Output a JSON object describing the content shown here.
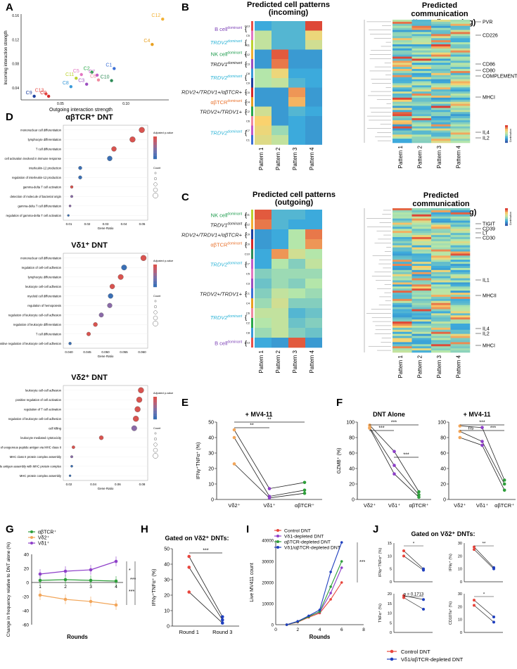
{
  "panels": {
    "A": "A",
    "B": "B",
    "C": "C",
    "D": "D",
    "E": "E",
    "F": "F",
    "G": "G",
    "H": "H",
    "I": "I",
    "J": "J"
  },
  "panel_a": {
    "xlabel": "Outgoing interaction strength",
    "ylabel": "Incoming interaction strength",
    "yticks": [
      "0.16",
      "0.12",
      "0.08",
      "0.04"
    ],
    "xticks": [
      "0.05",
      "0.10"
    ],
    "points": [
      {
        "label": "C12",
        "x": 0.128,
        "y": 0.154,
        "color": "#f2b134"
      },
      {
        "label": "C4",
        "x": 0.12,
        "y": 0.112,
        "color": "#e8a020"
      },
      {
        "label": "C1",
        "x": 0.091,
        "y": 0.072,
        "color": "#3b6fd6"
      },
      {
        "label": "C2",
        "x": 0.074,
        "y": 0.066,
        "color": "#2aa84a"
      },
      {
        "label": "C7",
        "x": 0.078,
        "y": 0.061,
        "color": "#c25bc8"
      },
      {
        "label": "C5",
        "x": 0.066,
        "y": 0.062,
        "color": "#e377c2"
      },
      {
        "label": "C11",
        "x": 0.062,
        "y": 0.056,
        "color": "#bcd230"
      },
      {
        "label": "C6",
        "x": 0.079,
        "y": 0.053,
        "color": "#f08aa0"
      },
      {
        "label": "C10",
        "x": 0.089,
        "y": 0.052,
        "color": "#2e8b57"
      },
      {
        "label": "C3",
        "x": 0.07,
        "y": 0.046,
        "color": "#9b4fc0"
      },
      {
        "label": "C8",
        "x": 0.058,
        "y": 0.042,
        "color": "#3a9ad9"
      },
      {
        "label": "C13",
        "x": 0.039,
        "y": 0.03,
        "color": "#e8504a"
      },
      {
        "label": "C9",
        "x": 0.03,
        "y": 0.026,
        "color": "#1c3f9e"
      },
      {
        "label": "C0",
        "x": 0.041,
        "y": 0.026,
        "color": "#d62728"
      }
    ]
  },
  "panel_b": {
    "title_left": "Predicted cell patterns\n(incoming)",
    "title_right": "Predicted communication\npatterns (incoming)",
    "patterns": [
      "Pattern 1",
      "Pattern 2",
      "Pattern 3",
      "Pattern 4"
    ],
    "row_labels": [
      {
        "text": "B cell",
        "sup": "dominant",
        "color": "#7b3fb5"
      },
      {
        "text": "TRDV2",
        "sup": "dominant",
        "color": "#2bb3d6"
      },
      {
        "text": "NK cell",
        "sup": "dominant",
        "color": "#1a9a4a"
      },
      {
        "text": "TRDV1",
        "sup": "dominant",
        "color": "#222222"
      },
      {
        "text": "TRDV2",
        "sup": "dominant",
        "color": "#2bb3d6"
      },
      {
        "text": "TRDV2+/TRDV1+/αβTCR+",
        "sup": "",
        "color": "#222222"
      },
      {
        "text": "αβTCR",
        "sup": "dominant",
        "color": "#e8702a"
      },
      {
        "text": "TRDV2+/TRDV1+",
        "sup": "",
        "color": "#222222"
      },
      {
        "text": "TRDV2",
        "sup": "dominant",
        "color": "#2bb3d6"
      }
    ],
    "clusters": [
      "C13",
      "C5",
      "C11",
      "C12",
      "C3",
      "C8",
      "C9",
      "C0",
      "C4",
      "C2",
      "C6",
      "C7",
      "C1"
    ],
    "right_labels": [
      "PVR",
      "CD226",
      "CD86",
      "CD80",
      "COMPLEMENT",
      "MHCI",
      "IL4",
      "IL2"
    ],
    "legend": "Contribution"
  },
  "panel_c": {
    "title_left": "Predicted cell patterns\n(outgoing)",
    "title_right": "Predicted communication\npatterns (outgoing)",
    "patterns": [
      "Pattern 1",
      "Pattern 2",
      "Pattern 3",
      "Pattern 4"
    ],
    "row_labels": [
      {
        "text": "NK cell",
        "sup": "dominant",
        "color": "#1a9a4a"
      },
      {
        "text": "TRDV1",
        "sup": "dominant",
        "color": "#222222"
      },
      {
        "text": "TRDV2+/TRDV1+/αβTCR+",
        "sup": "",
        "color": "#222222"
      },
      {
        "text": "αβTCR",
        "sup": "dominant",
        "color": "#e8702a"
      },
      {
        "text": "TRDV2",
        "sup": "dominant",
        "color": "#2bb3d6"
      },
      {
        "text": "TRDV2+/TRDV1+",
        "sup": "",
        "color": "#222222"
      },
      {
        "text": "TRDV2",
        "sup": "dominant",
        "color": "#2bb3d6"
      },
      {
        "text": "B cell",
        "sup": "dominant",
        "color": "#7b3fb5"
      }
    ],
    "clusters": [
      "C11",
      "C12",
      "C9",
      "C0",
      "C10",
      "C7",
      "C5",
      "C3",
      "C1",
      "C4",
      "C6",
      "C2",
      "C8",
      "C13"
    ],
    "right_labels": [
      "TIGIT",
      "CD39",
      "LT",
      "CD30",
      "IL1",
      "MHCII",
      "IL4",
      "IL2",
      "MHCI"
    ],
    "legend": "Contribution"
  },
  "panel_d": {
    "title1": "αβTCR⁺ DNT",
    "title2": "Vδ1⁺ DNT",
    "title3": "Vδ2⁺ DNT",
    "xlabel": "Gene Ratio",
    "legend_p": "Adjusted p-value",
    "legend_count": "Count",
    "terms1": [
      "mononuclear cell differentiation",
      "lymphocyte differentiation",
      "T cell differentiation",
      "cell activation involved in immune response",
      "interleukin-12 production",
      "regulation of interleukin-12 production",
      "gamma-delta T cell activation",
      "detection of molecule of bacterial origin",
      "gamma-delta T cell differentiation",
      "regulation of gamma-delta T cell activation"
    ],
    "terms2": [
      "mononuclear cell differentiation",
      "regulation of cell-cell adhesion",
      "lymphocyte differentiation",
      "leukocyte cell-cell adhesion",
      "myeloid cell differentiation",
      "regulation of hemopoiesis",
      "regulation of leukocyte cell-cell adhesion",
      "regulation of leukocyte differentiation",
      "T cell differentiation",
      "positive regulation of leukocyte cell-cell adhesion"
    ],
    "terms3": [
      "leukocyte cell-cell adhesion",
      "positive regulation of cell activation",
      "regulation of T cell activation",
      "regulation of leukocyte cell-cell adhesion",
      "cell killing",
      "leukocyte mediated cytotoxicity",
      "antigen processing and presentation of exogenous peptide antigen via MHC class II",
      "MHC class II protein complex assembly",
      "peptide antigen assembly with MHC protein complex",
      "MHC protein complex assembly"
    ],
    "x1": [
      "0.01",
      "0.02",
      "0.03",
      "0.04",
      "0.05"
    ],
    "x2": [
      "0.040",
      "0.045",
      "0.050",
      "0.055",
      "0.060"
    ],
    "x3": [
      "0.02",
      "0.04",
      "0.06",
      "0.08"
    ]
  },
  "panel_e": {
    "title": "+ MV4-11",
    "ylabel": "IFNγ⁺TNFα⁺ (%)",
    "groups": [
      "Vδ2⁺",
      "Vδ1⁺",
      "αβTCR⁺"
    ],
    "sig": [
      "**",
      "**"
    ]
  },
  "panel_f": {
    "title1": "DNT Alone",
    "title2": "+ MV4-11",
    "ylabel": "GZMB⁺ (%)",
    "groups": [
      "Vδ2⁺",
      "Vδ1⁺",
      "αβTCR⁺"
    ],
    "sig1": [
      "***",
      "***",
      "***"
    ],
    "sig2": [
      "***",
      "ns",
      "***"
    ]
  },
  "panel_g": {
    "ylabel": "Change in frequency relative to DNT alone (%)",
    "xlabel": "Rounds",
    "legend": [
      "αβTCR⁺",
      "Vδ2⁺",
      "Vδ1⁺"
    ],
    "sig": [
      "*",
      "***",
      "***"
    ]
  },
  "panel_h": {
    "title": "Gated on Vδ2⁺ DNTs:",
    "ylabel": "IFNγ⁺TNFα⁺ (%)",
    "groups": [
      "Round 1",
      "Round 3"
    ],
    "sig": "***"
  },
  "panel_i": {
    "ylabel": "Live MV411 count",
    "xlabel": "Rounds",
    "legend": [
      "Control DNT",
      "Vδ1-depleted DNT",
      "αβTCR-depleted DNT",
      "Vδ1/αβTCR-depleted DNT"
    ],
    "sig": "***"
  },
  "panel_j": {
    "title": "Gated on Vδ2⁺ DNTs:",
    "ylabels": [
      "IFNγ⁺TNFα⁺ (%)",
      "IFNγ⁺ (%)",
      "TNFα⁺ (%)",
      "CD107a⁺ (%)"
    ],
    "sig": [
      "*",
      "**",
      "p = 0.1713",
      "*"
    ],
    "legend": [
      "Control DNT",
      "Vδ1/αβTCR-depleted DNT"
    ]
  },
  "chart_data": [
    {
      "type": "line",
      "title": "+ MV4-11",
      "categories": [
        "Vδ2⁺",
        "Vδ1⁺",
        "αβTCR⁺"
      ],
      "ylabel": "IFNγ⁺TNFα⁺ (%)",
      "ylim": [
        0,
        50
      ],
      "series": [
        {
          "name": "donor1",
          "values": [
            45,
            7,
            11
          ]
        },
        {
          "name": "donor2",
          "values": [
            40,
            2,
            6
          ]
        },
        {
          "name": "donor3",
          "values": [
            23,
            1,
            4
          ]
        }
      ]
    },
    {
      "type": "line",
      "title": "DNT Alone",
      "categories": [
        "Vδ2⁺",
        "Vδ1⁺",
        "αβTCR⁺"
      ],
      "ylabel": "GZMB⁺ (%)",
      "ylim": [
        0,
        100
      ],
      "series": [
        {
          "name": "donor1",
          "values": [
            96,
            62,
            10
          ]
        },
        {
          "name": "donor2",
          "values": [
            93,
            44,
            6
          ]
        },
        {
          "name": "donor3",
          "values": [
            92,
            33,
            3
          ]
        }
      ]
    },
    {
      "type": "line",
      "title": "+ MV4-11",
      "categories": [
        "Vδ2⁺",
        "Vδ1⁺",
        "αβTCR⁺"
      ],
      "ylabel": "GZMB⁺ (%)",
      "ylim": [
        0,
        100
      ],
      "series": [
        {
          "name": "donor1",
          "values": [
            95,
            93,
            25
          ]
        },
        {
          "name": "donor2",
          "values": [
            88,
            75,
            20
          ]
        },
        {
          "name": "donor3",
          "values": [
            80,
            70,
            12
          ]
        }
      ]
    },
    {
      "type": "line",
      "xlabel": "Rounds",
      "ylabel": "Change in frequency relative to DNT alone (%)",
      "x": [
        1,
        2,
        3,
        4
      ],
      "ylim": [
        -60,
        40
      ],
      "series": [
        {
          "name": "αβTCR⁺",
          "values": [
            3,
            4,
            3,
            2
          ],
          "color": "#2e9e3a"
        },
        {
          "name": "Vδ2⁺",
          "values": [
            -18,
            -24,
            -27,
            -32
          ],
          "color": "#f2a65a"
        },
        {
          "name": "Vδ1⁺",
          "values": [
            12,
            16,
            18,
            30
          ],
          "color": "#8e3fc9"
        }
      ]
    },
    {
      "type": "line",
      "title": "Gated on Vδ2⁺ DNTs:",
      "categories": [
        "Round 1",
        "Round 3"
      ],
      "ylabel": "IFNγ⁺TNFα⁺ (%)",
      "ylim": [
        0,
        50
      ],
      "series": [
        {
          "name": "donor1",
          "values": [
            45,
            6
          ]
        },
        {
          "name": "donor2",
          "values": [
            38,
            4
          ]
        },
        {
          "name": "donor3",
          "values": [
            22,
            2
          ]
        }
      ]
    },
    {
      "type": "line",
      "xlabel": "Rounds",
      "ylabel": "Live MV411 count",
      "x": [
        1,
        2,
        3,
        4,
        5,
        6
      ],
      "ylim": [
        0,
        40000
      ],
      "series": [
        {
          "name": "Control DNT",
          "values": [
            0,
            1200,
            3500,
            5500,
            12000,
            20000
          ],
          "color": "#e8453c"
        },
        {
          "name": "Vδ1-depleted DNT",
          "values": [
            0,
            1500,
            4000,
            6000,
            15000,
            27000
          ],
          "color": "#8e3fc9"
        },
        {
          "name": "αβTCR-depleted DNT",
          "values": [
            0,
            1400,
            3800,
            6200,
            18000,
            30000
          ],
          "color": "#2e9e3a"
        },
        {
          "name": "Vδ1/αβTCR-depleted DNT",
          "values": [
            0,
            1600,
            4200,
            7000,
            25000,
            39000
          ],
          "color": "#1f3fbf"
        }
      ]
    }
  ]
}
